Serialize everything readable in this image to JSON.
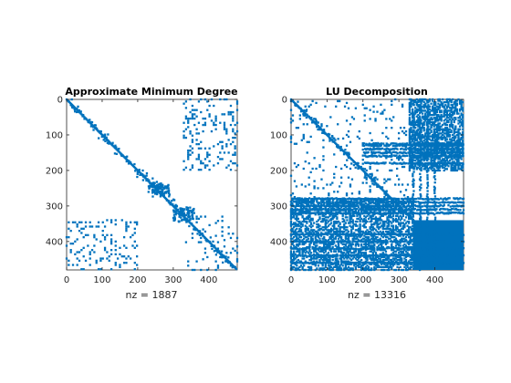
{
  "chart_data": [
    {
      "type": "spy",
      "title": "Approximate Minimum Degree",
      "xlabel": "nz = 1887",
      "ylabel": "",
      "xlim": [
        0,
        480
      ],
      "ylim": [
        0,
        480
      ],
      "y_reversed": true,
      "xticks": [
        0,
        100,
        200,
        300,
        400
      ],
      "yticks": [
        0,
        100,
        200,
        300,
        400
      ],
      "nz": 1887,
      "marker_color": "#0072BD",
      "structure": {
        "diagonal_band": {
          "from": 0,
          "to": 480,
          "half_width": 6
        },
        "dense_clusters": [
          {
            "x": [
              230,
              290
            ],
            "y": [
              230,
              290
            ]
          },
          {
            "x": [
              300,
              360
            ],
            "y": [
              300,
              360
            ]
          }
        ],
        "off_diagonal_blocks": [
          {
            "x": [
              330,
              480
            ],
            "y": [
              0,
              200
            ],
            "density": 0.18
          },
          {
            "x": [
              0,
              200
            ],
            "y": [
              340,
              480
            ],
            "density": 0.18
          },
          {
            "x": [
              330,
              480
            ],
            "y": [
              330,
              480
            ],
            "density": 0.1
          }
        ]
      }
    },
    {
      "type": "spy",
      "title": "LU Decomposition",
      "xlabel": "nz = 13316",
      "ylabel": "",
      "xlim": [
        0,
        480
      ],
      "ylim": [
        0,
        480
      ],
      "y_reversed": true,
      "xticks": [
        0,
        100,
        200,
        300,
        400
      ],
      "yticks": [
        0,
        100,
        200,
        300,
        400
      ],
      "nz": 13316,
      "marker_color": "#0072BD",
      "structure": {
        "diagonal_band": {
          "from": 0,
          "to": 480,
          "half_width": 6
        },
        "solid_block": {
          "x": [
            340,
            480
          ],
          "y": [
            340,
            480
          ]
        },
        "upper_fill": {
          "x": [
            330,
            480
          ],
          "y": [
            0,
            200
          ],
          "density": 0.55
        },
        "lower_fill": {
          "x": [
            0,
            340
          ],
          "y": [
            280,
            480
          ],
          "density": 0.45
        },
        "dense_rows": [
          125,
          130,
          140,
          150,
          160,
          180,
          280,
          290,
          300,
          310,
          320,
          380,
          400,
          420,
          440,
          460
        ],
        "dense_cols": [
          340,
          360,
          380,
          400
        ]
      }
    }
  ]
}
